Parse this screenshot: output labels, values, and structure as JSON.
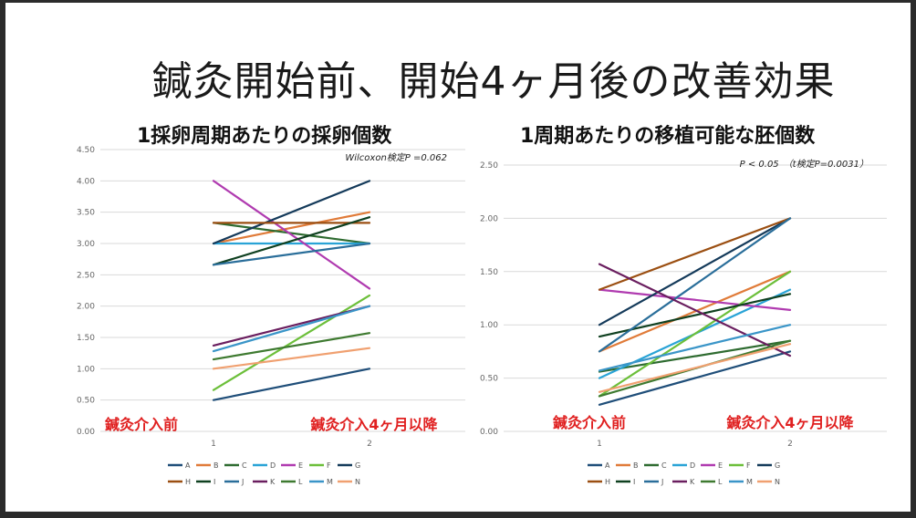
{
  "slide": {
    "title": "鍼灸開始前、開始4ヶ月後の改善効果"
  },
  "chart_data": [
    {
      "type": "line",
      "title": "1採卵周期あたりの採卵個数",
      "annotation": "Wilcoxon検定P =0.062",
      "x": [
        "1",
        "2"
      ],
      "x_labels": [
        "鍼灸介入前",
        "鍼灸介入4ヶ月以降"
      ],
      "ylim": [
        0,
        4.5
      ],
      "yticks": [
        "0.00",
        "0.50",
        "1.00",
        "1.50",
        "2.00",
        "2.50",
        "3.00",
        "3.50",
        "4.00",
        "4.50"
      ],
      "grid": true,
      "legend_position": "bottom",
      "series": [
        {
          "name": "A",
          "color": "#1f4e79",
          "values": [
            0.5,
            1.0
          ]
        },
        {
          "name": "B",
          "color": "#e07b39",
          "values": [
            3.0,
            3.5
          ]
        },
        {
          "name": "C",
          "color": "#2e6b30",
          "values": [
            3.33,
            3.0
          ]
        },
        {
          "name": "D",
          "color": "#29a3d6",
          "values": [
            3.0,
            3.0
          ]
        },
        {
          "name": "E",
          "color": "#b03bb0",
          "values": [
            4.0,
            2.28
          ]
        },
        {
          "name": "F",
          "color": "#6cbf3a",
          "values": [
            0.66,
            2.17
          ]
        },
        {
          "name": "G",
          "color": "#143a5a",
          "values": [
            3.0,
            4.0
          ]
        },
        {
          "name": "H",
          "color": "#9b4f12",
          "values": [
            3.33,
            3.33
          ]
        },
        {
          "name": "I",
          "color": "#0f4020",
          "values": [
            2.66,
            3.42
          ]
        },
        {
          "name": "J",
          "color": "#2a6e9a",
          "values": [
            2.66,
            3.0
          ]
        },
        {
          "name": "K",
          "color": "#6a1e5f",
          "values": [
            1.37,
            2.0
          ]
        },
        {
          "name": "L",
          "color": "#3e7a30",
          "values": [
            1.15,
            1.57
          ]
        },
        {
          "name": "M",
          "color": "#3a95c8",
          "values": [
            1.28,
            2.0
          ]
        },
        {
          "name": "N",
          "color": "#f0a070",
          "values": [
            1.0,
            1.33
          ]
        }
      ]
    },
    {
      "type": "line",
      "title": "1周期あたりの移植可能な胚個数",
      "annotation": "P < 0.05　（t検定P=0.0031）",
      "x": [
        "1",
        "2"
      ],
      "x_labels": [
        "鍼灸介入前",
        "鍼灸介入4ヶ月以降"
      ],
      "ylim": [
        0,
        2.5
      ],
      "yticks": [
        "0.00",
        "0.50",
        "1.00",
        "1.50",
        "2.00",
        "2.50"
      ],
      "grid": true,
      "legend_position": "bottom",
      "series": [
        {
          "name": "A",
          "color": "#1f4e79",
          "values": [
            0.25,
            0.75
          ]
        },
        {
          "name": "B",
          "color": "#e07b39",
          "values": [
            0.75,
            1.5
          ]
        },
        {
          "name": "C",
          "color": "#2e6b30",
          "values": [
            0.56,
            0.85
          ]
        },
        {
          "name": "D",
          "color": "#29a3d6",
          "values": [
            0.5,
            1.33
          ]
        },
        {
          "name": "E",
          "color": "#b03bb0",
          "values": [
            1.33,
            1.14
          ]
        },
        {
          "name": "F",
          "color": "#6cbf3a",
          "values": [
            0.33,
            1.5
          ]
        },
        {
          "name": "G",
          "color": "#143a5a",
          "values": [
            1.0,
            2.0
          ]
        },
        {
          "name": "H",
          "color": "#9b4f12",
          "values": [
            1.33,
            2.0
          ]
        },
        {
          "name": "I",
          "color": "#0f4020",
          "values": [
            0.89,
            1.29
          ]
        },
        {
          "name": "J",
          "color": "#2a6e9a",
          "values": [
            0.75,
            2.0
          ]
        },
        {
          "name": "K",
          "color": "#6a1e5f",
          "values": [
            1.57,
            0.71
          ]
        },
        {
          "name": "L",
          "color": "#3e7a30",
          "values": [
            0.33,
            0.85
          ]
        },
        {
          "name": "M",
          "color": "#3a95c8",
          "values": [
            0.57,
            1.0
          ]
        },
        {
          "name": "N",
          "color": "#f0a070",
          "values": [
            0.37,
            0.82
          ]
        }
      ]
    }
  ]
}
